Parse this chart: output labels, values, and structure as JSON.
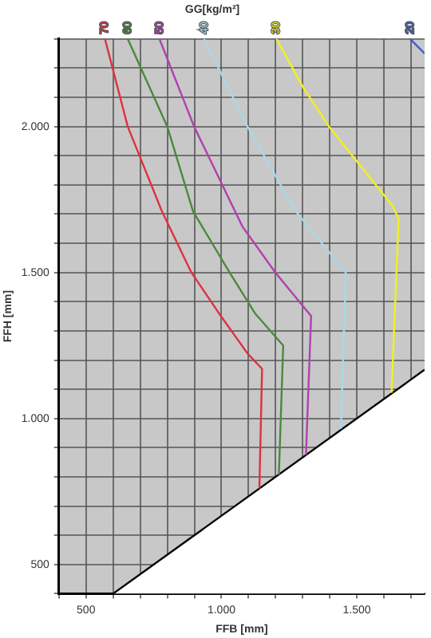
{
  "chart_data": {
    "type": "line",
    "title": "GG[kg/m²]",
    "xlabel": "FFB [mm]",
    "ylabel": "FFH [mm]",
    "xlim": [
      400,
      1750
    ],
    "ylim": [
      400,
      2300
    ],
    "xticks": [
      {
        "value": 400,
        "label": null
      },
      {
        "value": 500,
        "label": "500"
      },
      {
        "value": 600,
        "label": null
      },
      {
        "value": 700,
        "label": null
      },
      {
        "value": 800,
        "label": null
      },
      {
        "value": 900,
        "label": null
      },
      {
        "value": 1000,
        "label": "1.000"
      },
      {
        "value": 1100,
        "label": null
      },
      {
        "value": 1200,
        "label": null
      },
      {
        "value": 1300,
        "label": null
      },
      {
        "value": 1400,
        "label": null
      },
      {
        "value": 1500,
        "label": "1.500"
      },
      {
        "value": 1600,
        "label": null
      },
      {
        "value": 1700,
        "label": null
      }
    ],
    "yticks": [
      {
        "value": 400,
        "label": null
      },
      {
        "value": 500,
        "label": "500"
      },
      {
        "value": 600,
        "label": null
      },
      {
        "value": 700,
        "label": null
      },
      {
        "value": 800,
        "label": null
      },
      {
        "value": 900,
        "label": null
      },
      {
        "value": 1000,
        "label": "1.000"
      },
      {
        "value": 1100,
        "label": null
      },
      {
        "value": 1200,
        "label": null
      },
      {
        "value": 1300,
        "label": null
      },
      {
        "value": 1400,
        "label": null
      },
      {
        "value": 1500,
        "label": "1.500"
      },
      {
        "value": 1600,
        "label": null
      },
      {
        "value": 1700,
        "label": null
      },
      {
        "value": 1800,
        "label": null
      },
      {
        "value": 1900,
        "label": null
      },
      {
        "value": 2000,
        "label": "2.000"
      },
      {
        "value": 2100,
        "label": null
      },
      {
        "value": 2200,
        "label": null
      },
      {
        "value": 2300,
        "label": null
      }
    ],
    "grid": true,
    "legend": false,
    "marker": "none",
    "series": [
      {
        "name": "70",
        "color": "#e03040",
        "x": [
          570,
          654,
          780,
          889,
          991,
          1096,
          1150,
          1140
        ],
        "values": [
          2300,
          2000,
          1710,
          1500,
          1360,
          1223,
          1170,
          760
        ]
      },
      {
        "name": "60",
        "color": "#4a8a3a",
        "x": [
          654,
          800,
          895,
          1030,
          1124,
          1228,
          1212
        ],
        "values": [
          2300,
          2000,
          1710,
          1500,
          1360,
          1250,
          808
        ]
      },
      {
        "name": "50",
        "color": "#b040b0",
        "x": [
          771,
          899,
          1077,
          1199,
          1331,
          1312
        ],
        "values": [
          2300,
          2000,
          1658,
          1500,
          1351,
          875
        ]
      },
      {
        "name": "40",
        "color": "#a8d8e8",
        "x": [
          936,
          1096,
          1274,
          1459,
          1441
        ],
        "values": [
          2300,
          2000,
          1710,
          1500,
          965
        ]
      },
      {
        "name": "30",
        "color": "#f0f020",
        "x": [
          1203,
          1303,
          1397,
          1632,
          1654,
          1628
        ],
        "values": [
          2300,
          2132,
          2000,
          1728,
          1684,
          1088
        ]
      },
      {
        "name": "20",
        "color": "#4060c0",
        "x": [
          1697,
          1750
        ],
        "values": [
          2300,
          2250
        ]
      },
      {
        "type": "area",
        "color": "#000000",
        "x": [
          600,
          1750
        ],
        "values": [
          400,
          1167
        ]
      }
    ]
  }
}
